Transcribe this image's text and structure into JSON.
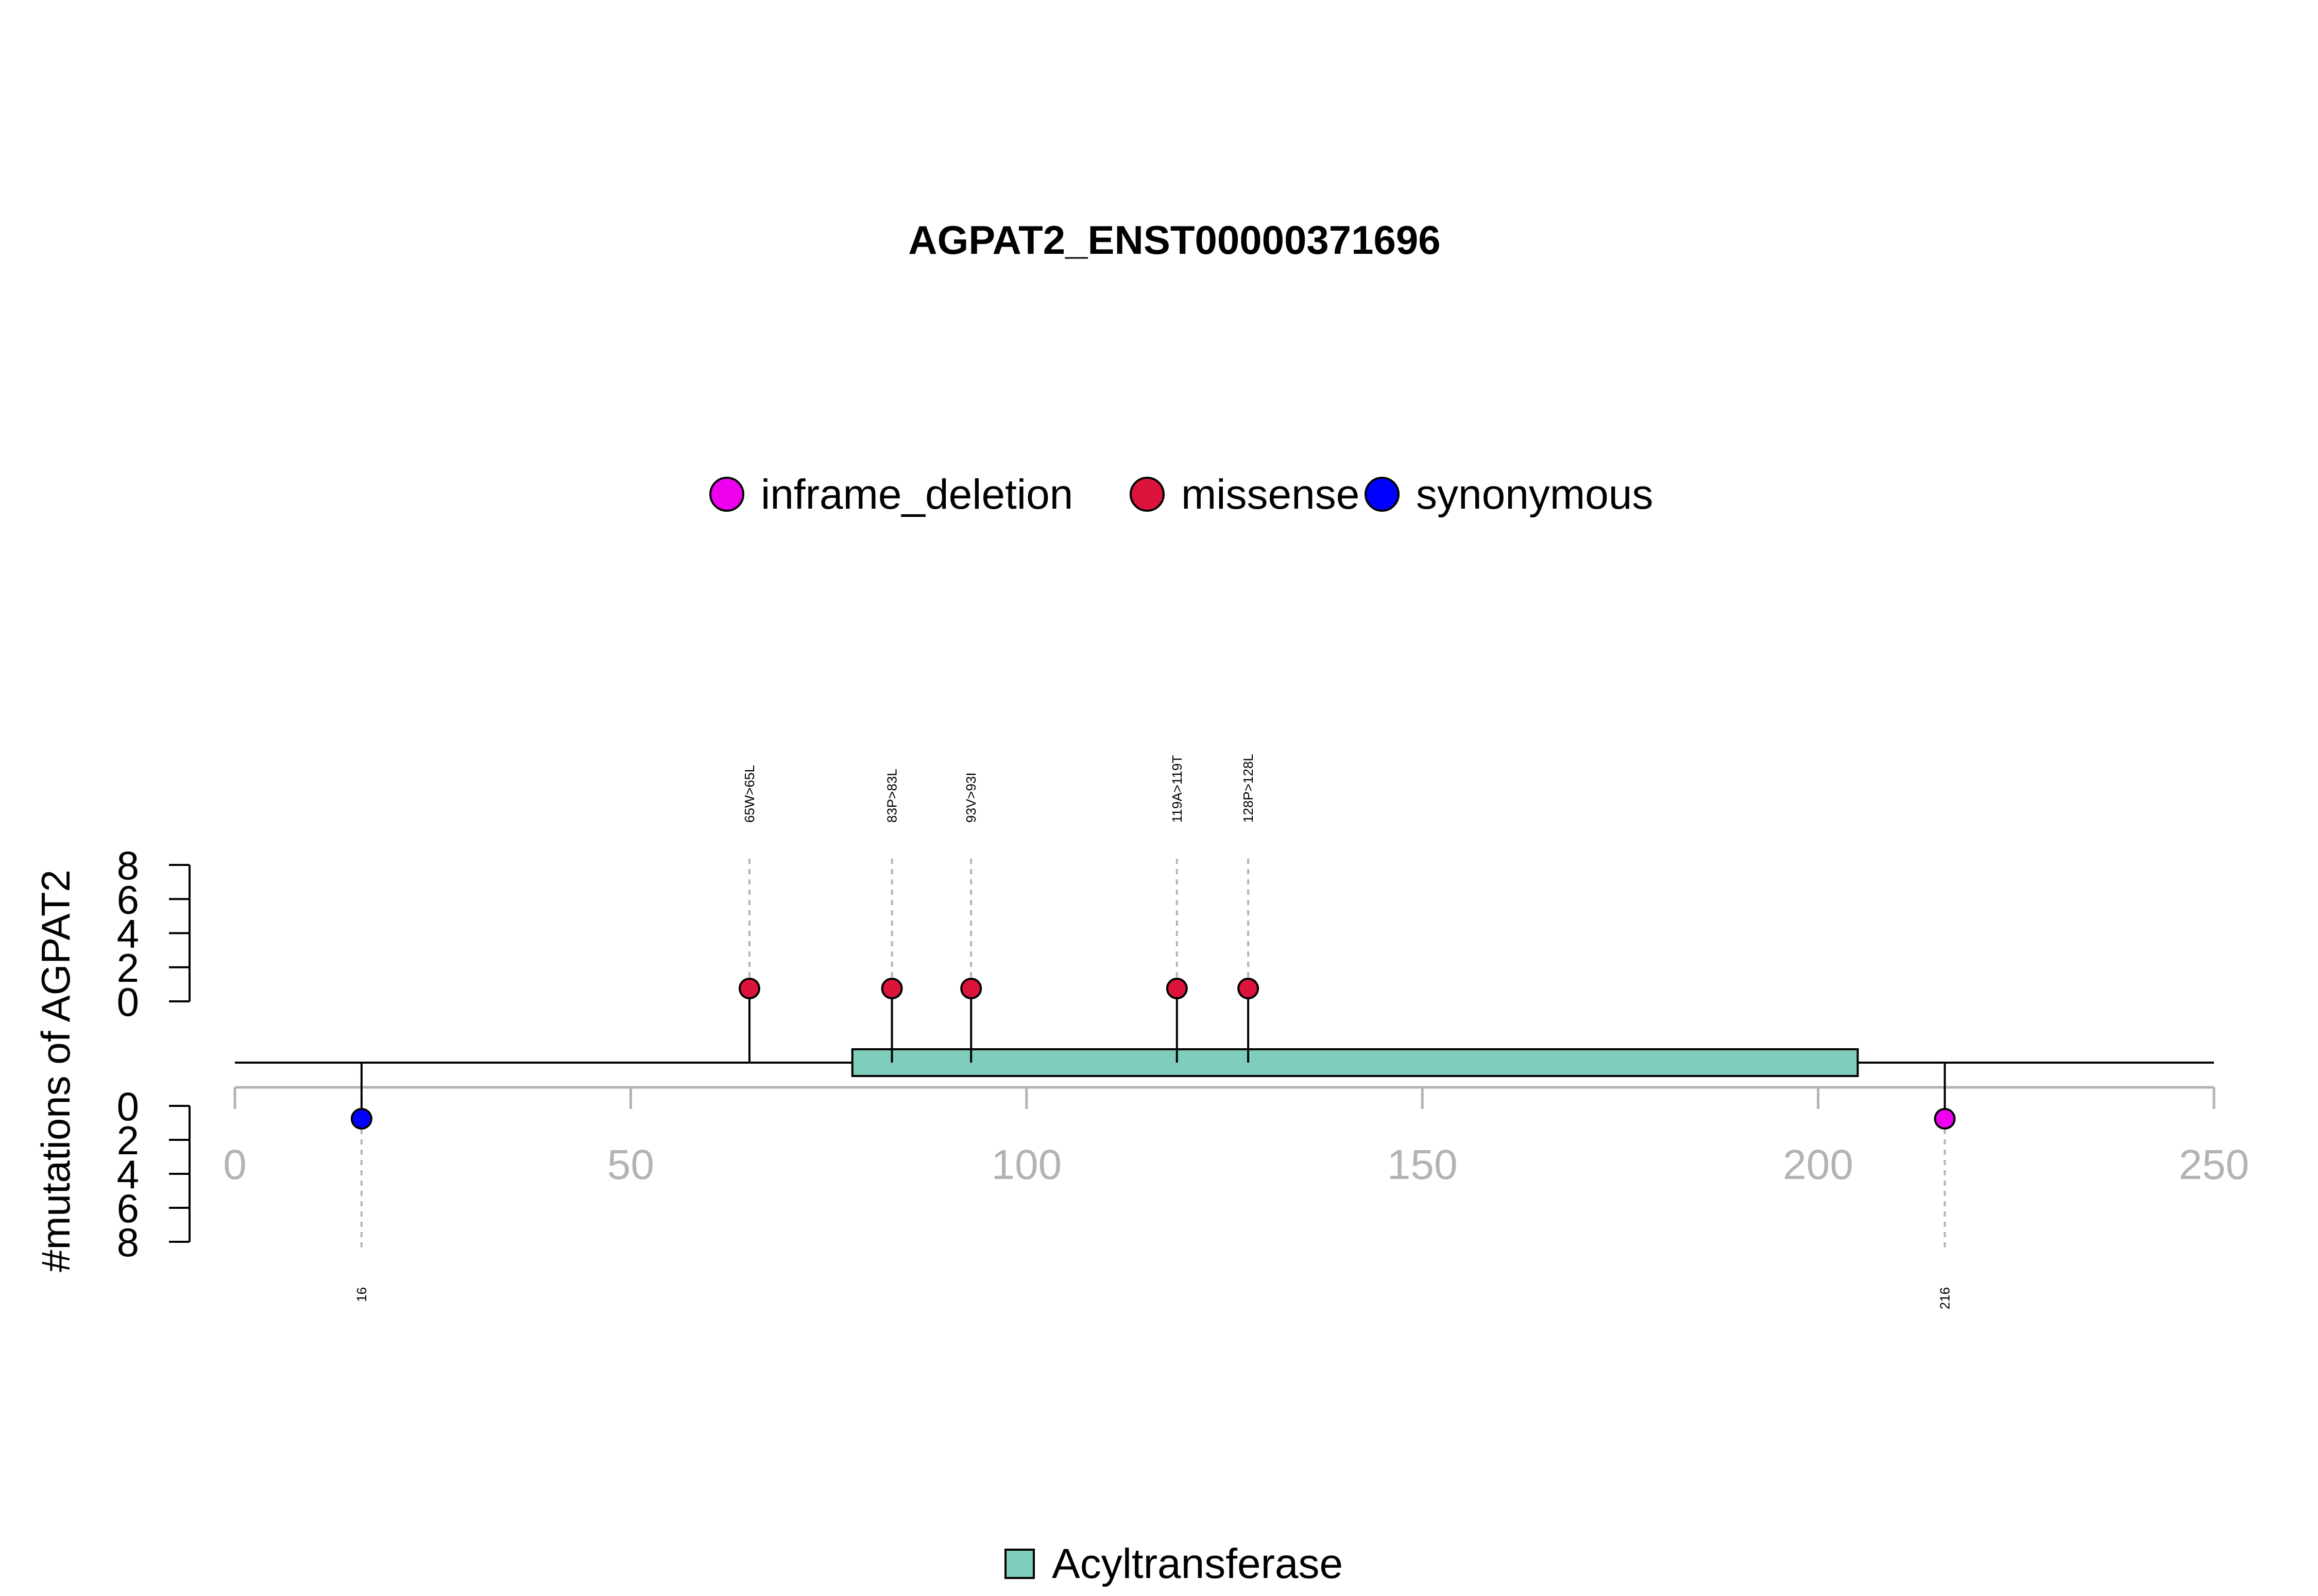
{
  "chart_data": {
    "type": "lollipop",
    "title": "AGPAT2_ENST00000371696",
    "ylabel": "#mutations of AGPAT2",
    "xlim": [
      0,
      250
    ],
    "x_ticks": [
      "0",
      "50",
      "100",
      "150",
      "200",
      "250"
    ],
    "y_ticks_top": [
      "0",
      "2",
      "4",
      "6",
      "8"
    ],
    "y_ticks_bottom": [
      "0",
      "2",
      "4",
      "6",
      "8"
    ],
    "protein_length": 250,
    "legend_mutations": [
      {
        "name": "inframe_deletion",
        "color": "#ee00ee"
      },
      {
        "name": "missense",
        "color": "#dc143c"
      },
      {
        "name": "synonymous",
        "color": "#0000ff"
      }
    ],
    "domains": [
      {
        "name": "Acyltransferase",
        "start": 78,
        "end": 205,
        "color": "#7fcdbb"
      }
    ],
    "mutations_top": [
      {
        "position": 65,
        "label": "65W>65L",
        "count": 1,
        "type": "missense"
      },
      {
        "position": 83,
        "label": "83P>83L",
        "count": 1,
        "type": "missense"
      },
      {
        "position": 93,
        "label": "93V>93I",
        "count": 1,
        "type": "missense"
      },
      {
        "position": 119,
        "label": "119A>119T",
        "count": 1,
        "type": "missense"
      },
      {
        "position": 128,
        "label": "128P>128L",
        "count": 1,
        "type": "missense"
      }
    ],
    "mutations_bottom": [
      {
        "position": 16,
        "label": "16",
        "count": 1,
        "type": "synonymous"
      },
      {
        "position": 216,
        "label": "216",
        "count": 1,
        "type": "inframe_deletion"
      }
    ]
  }
}
